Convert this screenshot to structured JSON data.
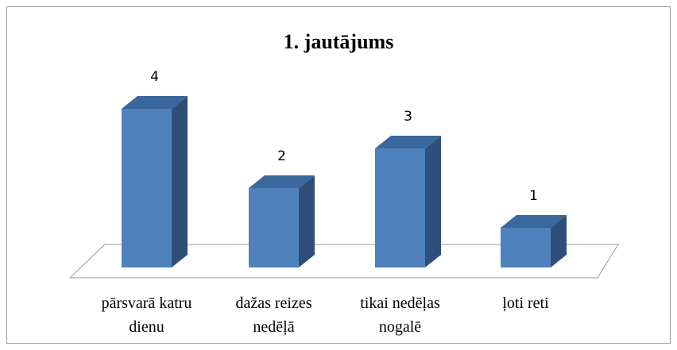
{
  "chart_data": {
    "type": "bar3d",
    "title": "1. jautājums",
    "categories": [
      "pārsvarā katru dienu",
      "dažas reizes nedēļā",
      "tikai nedēļas nogalē",
      "ļoti reti"
    ],
    "values": [
      4,
      2,
      3,
      1
    ],
    "color": "#4f81bd"
  }
}
